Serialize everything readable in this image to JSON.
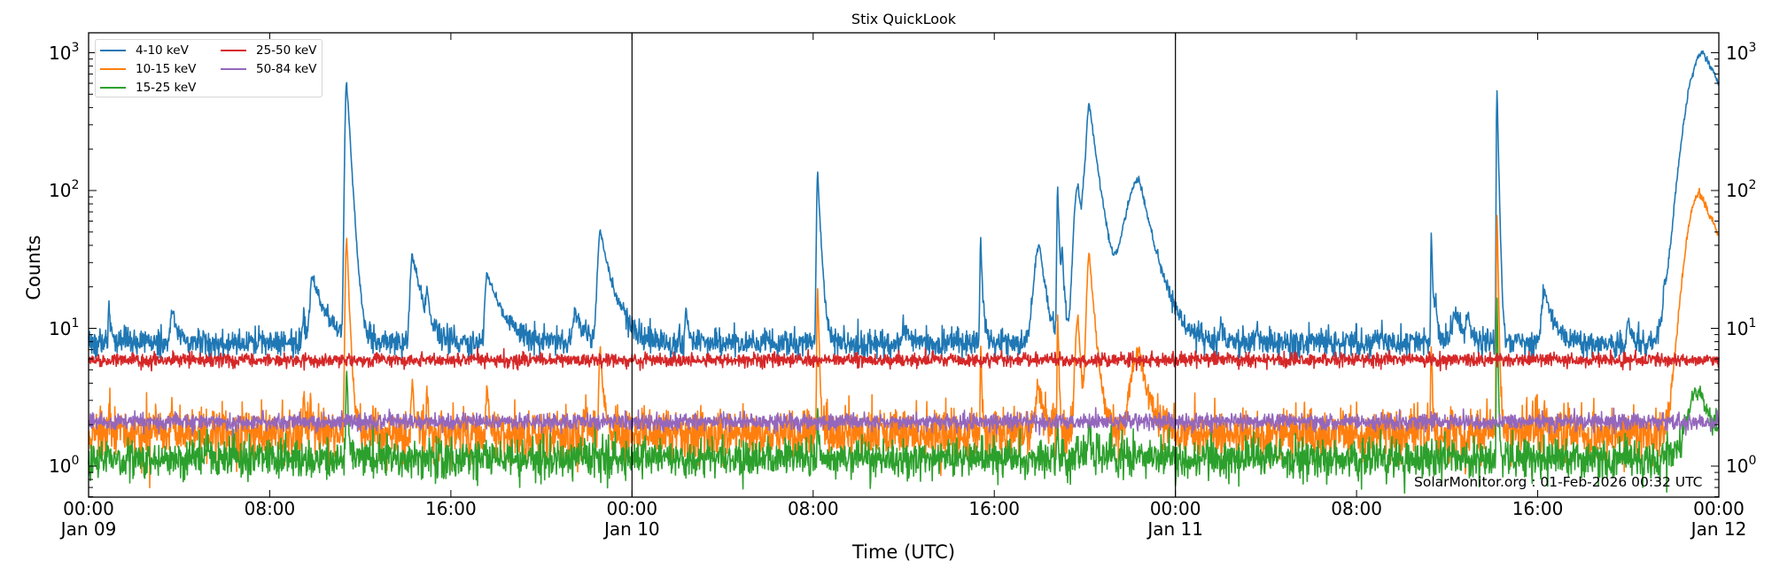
{
  "chart_data": {
    "type": "line",
    "title": "Stix QuickLook",
    "xlabel": "Time (UTC)",
    "ylabel": "Counts",
    "yscale": "log",
    "ylim": [
      0.58,
      1400
    ],
    "xlim_hours": [
      0,
      72
    ],
    "grid": false,
    "legend_position": "upper left",
    "x_ticks": [
      {
        "hour": 0,
        "label": "00:00",
        "sublabel": "Jan 09"
      },
      {
        "hour": 8,
        "label": "08:00",
        "sublabel": ""
      },
      {
        "hour": 16,
        "label": "16:00",
        "sublabel": ""
      },
      {
        "hour": 24,
        "label": "00:00",
        "sublabel": "Jan 10"
      },
      {
        "hour": 32,
        "label": "08:00",
        "sublabel": ""
      },
      {
        "hour": 40,
        "label": "16:00",
        "sublabel": ""
      },
      {
        "hour": 48,
        "label": "00:00",
        "sublabel": "Jan 11"
      },
      {
        "hour": 56,
        "label": "08:00",
        "sublabel": ""
      },
      {
        "hour": 64,
        "label": "16:00",
        "sublabel": ""
      },
      {
        "hour": 72,
        "label": "00:00",
        "sublabel": "Jan 12"
      }
    ],
    "y_ticks": [
      {
        "value": 1,
        "base": "10",
        "exp": "0"
      },
      {
        "value": 10,
        "base": "10",
        "exp": "1"
      },
      {
        "value": 100,
        "base": "10",
        "exp": "2"
      },
      {
        "value": 1000,
        "base": "10",
        "exp": "3"
      }
    ],
    "day_boundaries_hours": [
      24,
      48
    ],
    "annotation": "SolarMonitor.org : 01-Feb-2026 00:32 UTC",
    "series": [
      {
        "name": "4-10 keV",
        "color": "#1f77b4",
        "baseline": 7.8,
        "noise": 0.05,
        "events": [
          {
            "t": 0.9,
            "peak": 14.7,
            "rise": 0.03,
            "decay": 0.08
          },
          {
            "t": 3.7,
            "peak": 13.3,
            "rise": 0.08,
            "decay": 0.25
          },
          {
            "t": 9.5,
            "peak": 12,
            "rise": 0.05,
            "decay": 0.1
          },
          {
            "t": 9.9,
            "peak": 24,
            "rise": 0.1,
            "decay": 0.5
          },
          {
            "t": 11.4,
            "peak": 620,
            "rise": 0.06,
            "decay": 0.15
          },
          {
            "t": 14.3,
            "peak": 34,
            "rise": 0.08,
            "decay": 0.4
          },
          {
            "t": 14.95,
            "peak": 15,
            "rise": 0.03,
            "decay": 0.08
          },
          {
            "t": 17.6,
            "peak": 25,
            "rise": 0.08,
            "decay": 0.6
          },
          {
            "t": 21.5,
            "peak": 13,
            "rise": 0.1,
            "decay": 0.3
          },
          {
            "t": 22.6,
            "peak": 51,
            "rise": 0.1,
            "decay": 0.45
          },
          {
            "t": 23.6,
            "peak": 10,
            "rise": 0.1,
            "decay": 0.3
          },
          {
            "t": 26.4,
            "peak": 14,
            "rise": 0.04,
            "decay": 0.1
          },
          {
            "t": 32.2,
            "peak": 133,
            "rise": 0.04,
            "decay": 0.12
          },
          {
            "t": 36.0,
            "peak": 10.5,
            "rise": 0.05,
            "decay": 0.2
          },
          {
            "t": 39.4,
            "peak": 43,
            "rise": 0.03,
            "decay": 0.08
          },
          {
            "t": 42.0,
            "peak": 41,
            "rise": 0.2,
            "decay": 0.25
          },
          {
            "t": 42.8,
            "peak": 103,
            "rise": 0.03,
            "decay": 0.08
          },
          {
            "t": 43.0,
            "peak": 30,
            "rise": 0.03,
            "decay": 0.1
          },
          {
            "t": 43.7,
            "peak": 110,
            "rise": 0.15,
            "decay": 0.2
          },
          {
            "t": 43.95,
            "peak": 48,
            "rise": 0.08,
            "decay": 0.1
          },
          {
            "t": 44.2,
            "peak": 410,
            "rise": 0.12,
            "decay": 0.35
          },
          {
            "t": 46.4,
            "peak": 120,
            "rise": 0.5,
            "decay": 0.55
          },
          {
            "t": 50.0,
            "peak": 11,
            "rise": 0.05,
            "decay": 0.15
          },
          {
            "t": 51.6,
            "peak": 10,
            "rise": 0.04,
            "decay": 0.1
          },
          {
            "t": 56.8,
            "peak": 9.5,
            "rise": 0.08,
            "decay": 0.2
          },
          {
            "t": 59.3,
            "peak": 49,
            "rise": 0.02,
            "decay": 0.06
          },
          {
            "t": 59.5,
            "peak": 14,
            "rise": 0.05,
            "decay": 0.1
          },
          {
            "t": 60.4,
            "peak": 13,
            "rise": 0.15,
            "decay": 0.25
          },
          {
            "t": 60.9,
            "peak": 13,
            "rise": 0.05,
            "decay": 0.15
          },
          {
            "t": 62.2,
            "peak": 560,
            "rise": 0.02,
            "decay": 0.06
          },
          {
            "t": 64.3,
            "peak": 19,
            "rise": 0.1,
            "decay": 0.35
          },
          {
            "t": 68.0,
            "peak": 11,
            "rise": 0.05,
            "decay": 0.15
          },
          {
            "t": 69.6,
            "peak": 14,
            "rise": 0.04,
            "decay": 0.1
          },
          {
            "t": 70.5,
            "peak": 12,
            "rise": 0.05,
            "decay": 0.15
          },
          {
            "t": 71.3,
            "peak": 1000,
            "rise": 0.55,
            "decay": 1.4
          }
        ]
      },
      {
        "name": "10-15 keV",
        "color": "#ff7f0e",
        "baseline": 1.75,
        "noise": 0.09,
        "events": [
          {
            "t": 0.9,
            "peak": 2.8,
            "rise": 0.02,
            "decay": 0.05
          },
          {
            "t": 3.7,
            "peak": 2.5,
            "rise": 0.03,
            "decay": 0.05
          },
          {
            "t": 9.5,
            "peak": 3.6,
            "rise": 0.03,
            "decay": 0.06
          },
          {
            "t": 9.8,
            "peak": 3.2,
            "rise": 0.03,
            "decay": 0.08
          },
          {
            "t": 11.4,
            "peak": 44,
            "rise": 0.05,
            "decay": 0.1
          },
          {
            "t": 14.3,
            "peak": 4.3,
            "rise": 0.04,
            "decay": 0.08
          },
          {
            "t": 14.95,
            "peak": 3.5,
            "rise": 0.03,
            "decay": 0.05
          },
          {
            "t": 17.6,
            "peak": 4.0,
            "rise": 0.04,
            "decay": 0.08
          },
          {
            "t": 22.6,
            "peak": 7.3,
            "rise": 0.05,
            "decay": 0.12
          },
          {
            "t": 32.2,
            "peak": 20,
            "rise": 0.03,
            "decay": 0.06
          },
          {
            "t": 39.4,
            "peak": 7.5,
            "rise": 0.02,
            "decay": 0.05
          },
          {
            "t": 42.0,
            "peak": 3.8,
            "rise": 0.15,
            "decay": 0.15
          },
          {
            "t": 42.8,
            "peak": 13,
            "rise": 0.02,
            "decay": 0.05
          },
          {
            "t": 43.7,
            "peak": 12,
            "rise": 0.1,
            "decay": 0.12
          },
          {
            "t": 44.2,
            "peak": 34,
            "rise": 0.1,
            "decay": 0.2
          },
          {
            "t": 46.4,
            "peak": 7.0,
            "rise": 0.3,
            "decay": 0.35
          },
          {
            "t": 59.3,
            "peak": 7.5,
            "rise": 0.02,
            "decay": 0.05
          },
          {
            "t": 62.2,
            "peak": 67,
            "rise": 0.02,
            "decay": 0.05
          },
          {
            "t": 64.3,
            "peak": 2.6,
            "rise": 0.04,
            "decay": 0.08
          },
          {
            "t": 71.15,
            "peak": 94,
            "rise": 0.45,
            "decay": 1.2
          }
        ]
      },
      {
        "name": "15-25 keV",
        "color": "#2ca02c",
        "baseline": 1.15,
        "noise": 0.07,
        "events": [
          {
            "t": 11.4,
            "peak": 4.8,
            "rise": 0.03,
            "decay": 0.06
          },
          {
            "t": 32.2,
            "peak": 2.7,
            "rise": 0.02,
            "decay": 0.04
          },
          {
            "t": 42.8,
            "peak": 2.3,
            "rise": 0.02,
            "decay": 0.04
          },
          {
            "t": 44.2,
            "peak": 2.2,
            "rise": 0.04,
            "decay": 0.06
          },
          {
            "t": 62.2,
            "peak": 17,
            "rise": 0.02,
            "decay": 0.04
          },
          {
            "t": 71.1,
            "peak": 3.6,
            "rise": 0.4,
            "decay": 0.7
          }
        ]
      },
      {
        "name": "25-50 keV",
        "color": "#d62728",
        "baseline": 5.9,
        "noise": 0.025,
        "events": []
      },
      {
        "name": "50-84 keV",
        "color": "#9467bd",
        "baseline": 2.1,
        "noise": 0.03,
        "events": []
      }
    ]
  }
}
